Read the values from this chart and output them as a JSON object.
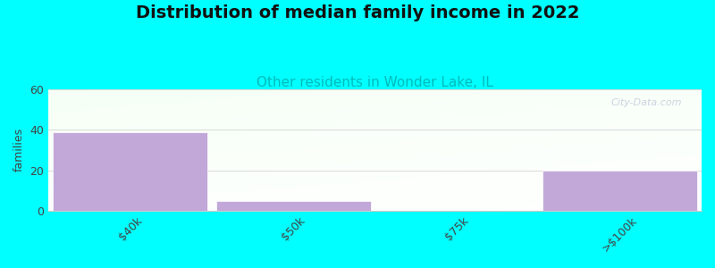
{
  "title": "Distribution of median family income in 2022",
  "subtitle": "Other residents in Wonder Lake, IL",
  "subtitle_color": "#00bbbb",
  "title_fontsize": 14,
  "subtitle_fontsize": 11,
  "ylabel": "families",
  "categories": [
    "$40k",
    "$50k",
    "$75k",
    ">$100k"
  ],
  "values": [
    39,
    5,
    0,
    20
  ],
  "bar_color": "#c2a8d8",
  "ylim": [
    0,
    60
  ],
  "yticks": [
    0,
    20,
    40,
    60
  ],
  "background_color": "#00ffff",
  "plot_bg_color_tl": "#e0f0e8",
  "plot_bg_color_tr": "#f8fdf8",
  "plot_bg_color_bl": "#ffffff",
  "watermark": "City-Data.com",
  "figsize": [
    8.0,
    3.0
  ],
  "dpi": 100
}
